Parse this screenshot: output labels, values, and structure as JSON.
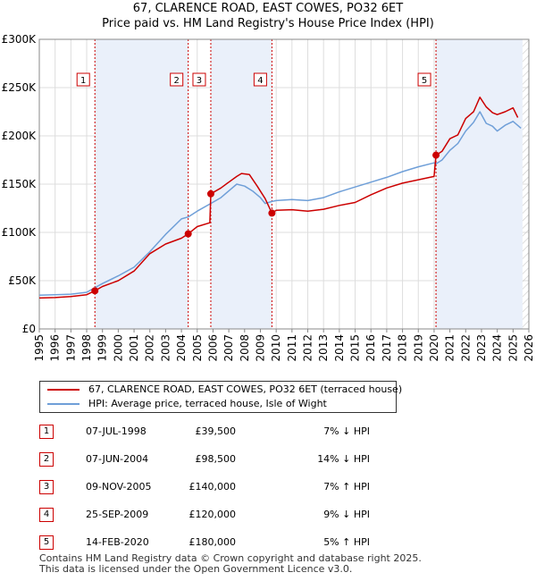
{
  "chart_data": {
    "type": "line",
    "title": "67, CLARENCE ROAD, EAST COWES, PO32 6ET",
    "subtitle": "Price paid vs. HM Land Registry's House Price Index (HPI)",
    "xlabel": "",
    "ylabel": "",
    "xlim": [
      1995,
      2026
    ],
    "ylim": [
      0,
      300000
    ],
    "y_ticks": [
      {
        "value": 0,
        "label": "£0"
      },
      {
        "value": 50000,
        "label": "£50K"
      },
      {
        "value": 100000,
        "label": "£100K"
      },
      {
        "value": 150000,
        "label": "£150K"
      },
      {
        "value": 200000,
        "label": "£200K"
      },
      {
        "value": 250000,
        "label": "£250K"
      },
      {
        "value": 300000,
        "label": "£300K"
      }
    ],
    "x_ticks": [
      "1995",
      "1996",
      "1997",
      "1998",
      "1999",
      "2000",
      "2001",
      "2002",
      "2003",
      "2004",
      "2005",
      "2006",
      "2007",
      "2008",
      "2009",
      "2010",
      "2011",
      "2012",
      "2013",
      "2014",
      "2015",
      "2016",
      "2017",
      "2018",
      "2019",
      "2020",
      "2021",
      "2022",
      "2023",
      "2024",
      "2025",
      "2026"
    ],
    "shaded_spans": [
      [
        1998.52,
        2004.43
      ],
      [
        2005.86,
        2009.73
      ],
      [
        2020.12,
        2025.6
      ]
    ],
    "hatched_after": 2025.6,
    "series": [
      {
        "name": "67, CLARENCE ROAD, EAST COWES, PO32 6ET (terraced house)",
        "color": "#cc0000",
        "x": [
          1995.0,
          1996.0,
          1997.0,
          1998.0,
          1998.52,
          1999.0,
          2000.0,
          2001.0,
          2002.0,
          2003.0,
          2004.0,
          2004.43,
          2005.0,
          2005.8,
          2005.86,
          2006.5,
          2007.0,
          2007.5,
          2007.8,
          2008.3,
          2008.8,
          2009.3,
          2009.73,
          2010.0,
          2011.0,
          2012.0,
          2013.0,
          2014.0,
          2015.0,
          2016.0,
          2017.0,
          2018.0,
          2019.0,
          2020.0,
          2020.12,
          2020.5,
          2021.0,
          2021.5,
          2022.0,
          2022.5,
          2022.9,
          2023.3,
          2023.7,
          2024.0,
          2024.5,
          2025.0,
          2025.3
        ],
        "y": [
          32000,
          32500,
          33500,
          35500,
          39500,
          44000,
          50000,
          60000,
          78000,
          88000,
          94000,
          98500,
          106000,
          110000,
          140000,
          146000,
          152000,
          158000,
          161000,
          160000,
          148000,
          135000,
          120000,
          123000,
          123500,
          122000,
          124000,
          128000,
          131000,
          139000,
          146000,
          151000,
          154500,
          158000,
          180000,
          184000,
          197000,
          201000,
          218000,
          225000,
          240000,
          230000,
          224000,
          222000,
          225000,
          229000,
          219000
        ]
      },
      {
        "name": "HPI: Average price, terraced house, Isle of Wight",
        "color": "#6f9fd8",
        "x": [
          1995.0,
          1996.0,
          1997.0,
          1998.0,
          1999.0,
          2000.0,
          2001.0,
          2002.0,
          2003.0,
          2004.0,
          2004.43,
          2005.0,
          2005.86,
          2006.5,
          2007.0,
          2007.5,
          2008.0,
          2008.5,
          2009.0,
          2009.3,
          2009.73,
          2010.0,
          2011.0,
          2012.0,
          2013.0,
          2014.0,
          2015.0,
          2016.0,
          2017.0,
          2018.0,
          2019.0,
          2020.0,
          2020.12,
          2020.5,
          2021.0,
          2021.5,
          2022.0,
          2022.5,
          2022.9,
          2023.3,
          2023.7,
          2024.0,
          2024.5,
          2025.0,
          2025.5
        ],
        "y": [
          35000,
          35500,
          36000,
          38000,
          47000,
          55000,
          64000,
          80000,
          98000,
          114000,
          116000,
          122000,
          130000,
          136000,
          143000,
          150000,
          148000,
          143000,
          136000,
          130000,
          132000,
          133000,
          134000,
          133000,
          136000,
          142000,
          147000,
          152000,
          157000,
          163000,
          168000,
          172000,
          171000,
          175000,
          185000,
          192000,
          205000,
          214000,
          225000,
          213000,
          210000,
          205000,
          211000,
          215000,
          208000
        ]
      }
    ],
    "sales_markers": [
      {
        "id": "1",
        "x": 1998.52,
        "y": 39500
      },
      {
        "id": "2",
        "x": 2004.43,
        "y": 98500
      },
      {
        "id": "3",
        "x": 2005.86,
        "y": 140000
      },
      {
        "id": "4",
        "x": 2009.73,
        "y": 120000
      },
      {
        "id": "5",
        "x": 2020.12,
        "y": 180000
      }
    ]
  },
  "legend": {
    "property_label": "67, CLARENCE ROAD, EAST COWES, PO32 6ET (terraced house)",
    "hpi_label": "HPI: Average price, terraced house, Isle of Wight",
    "property_color": "#cc0000",
    "hpi_color": "#6f9fd8"
  },
  "sales": [
    {
      "id": "1",
      "date": "07-JUL-1998",
      "price": "£39,500",
      "hpi": "7% ↓ HPI"
    },
    {
      "id": "2",
      "date": "07-JUN-2004",
      "price": "£98,500",
      "hpi": "14% ↓ HPI"
    },
    {
      "id": "3",
      "date": "09-NOV-2005",
      "price": "£140,000",
      "hpi": "7% ↑ HPI"
    },
    {
      "id": "4",
      "date": "25-SEP-2009",
      "price": "£120,000",
      "hpi": "9% ↓ HPI"
    },
    {
      "id": "5",
      "date": "14-FEB-2020",
      "price": "£180,000",
      "hpi": "5% ↑ HPI"
    }
  ],
  "footer": {
    "line1": "Contains HM Land Registry data © Crown copyright and database right 2025.",
    "line2": "This data is licensed under the Open Government Licence v3.0."
  }
}
